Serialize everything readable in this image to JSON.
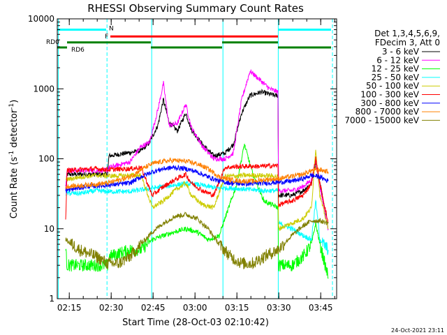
{
  "chart_data": {
    "type": "line",
    "title": "RHESSI Observing Summary Count Rates",
    "xlabel": "Start Time (28-Oct-03 02:10:42)",
    "ylabel_main": "Count Rate (s",
    "ylabel_sup1": "-1",
    "ylabel_mid": " detector",
    "ylabel_sup2": "-1",
    "ylabel_end": ")",
    "x_unit": "minutes since 02:10:42",
    "xlim": [
      0,
      100
    ],
    "ylim": [
      1,
      10000
    ],
    "y_scale": "log",
    "xticks": [
      {
        "label": "02:15",
        "value": 4.3
      },
      {
        "label": "02:30",
        "value": 19.3
      },
      {
        "label": "02:45",
        "value": 34.3
      },
      {
        "label": "03:00",
        "value": 49.3
      },
      {
        "label": "03:15",
        "value": 64.3
      },
      {
        "label": "03:30",
        "value": 79.3
      },
      {
        "label": "03:45",
        "value": 94.3
      }
    ],
    "yticks": [
      {
        "label": "1",
        "value": 1
      },
      {
        "label": "10",
        "value": 10
      },
      {
        "label": "100",
        "value": 100
      },
      {
        "label": "1000",
        "value": 1000
      },
      {
        "label": "10000",
        "value": 10000
      }
    ],
    "legend_header": [
      "Det 1,3,4,5,6,9,",
      "FDecim 3, Att 0"
    ],
    "legend_position": "right",
    "series": [
      {
        "name": "3 - 6 keV",
        "color": "#000000",
        "points": [
          [
            3,
            40
          ],
          [
            3.5,
            60
          ],
          [
            18,
            60
          ],
          [
            18.5,
            110
          ],
          [
            30,
            130
          ],
          [
            33,
            170
          ],
          [
            36,
            300
          ],
          [
            38,
            700
          ],
          [
            40,
            330
          ],
          [
            43,
            250
          ],
          [
            46,
            450
          ],
          [
            48,
            260
          ],
          [
            52,
            160
          ],
          [
            56,
            110
          ],
          [
            60,
            120
          ],
          [
            63,
            160
          ],
          [
            66,
            450
          ],
          [
            69,
            800
          ],
          [
            73,
            900
          ],
          [
            78,
            800
          ],
          [
            79,
            800
          ],
          [
            79.2,
            30
          ],
          [
            84,
            30
          ],
          [
            88,
            35
          ],
          [
            91,
            45
          ],
          [
            92.5,
            90
          ],
          [
            94,
            45
          ],
          [
            97,
            10
          ]
        ]
      },
      {
        "name": "6 - 12 keV",
        "color": "#ff00ff",
        "points": [
          [
            3,
            40
          ],
          [
            3.5,
            68
          ],
          [
            18,
            68
          ],
          [
            18.5,
            75
          ],
          [
            26,
            90
          ],
          [
            30,
            150
          ],
          [
            33,
            170
          ],
          [
            36,
            500
          ],
          [
            38,
            1200
          ],
          [
            40,
            300
          ],
          [
            43,
            320
          ],
          [
            46,
            600
          ],
          [
            48,
            280
          ],
          [
            52,
            150
          ],
          [
            56,
            100
          ],
          [
            60,
            100
          ],
          [
            63,
            120
          ],
          [
            66,
            700
          ],
          [
            69,
            1800
          ],
          [
            72,
            1400
          ],
          [
            76,
            1000
          ],
          [
            79,
            900
          ],
          [
            79.2,
            35
          ],
          [
            84,
            35
          ],
          [
            88,
            40
          ],
          [
            91,
            50
          ],
          [
            92.5,
            95
          ],
          [
            94,
            40
          ],
          [
            97,
            10
          ]
        ]
      },
      {
        "name": "12 - 25 keV",
        "color": "#00ff00",
        "points": [
          [
            3,
            5
          ],
          [
            3.5,
            3
          ],
          [
            18,
            3
          ],
          [
            18.5,
            4
          ],
          [
            26,
            5
          ],
          [
            30,
            5
          ],
          [
            34,
            7
          ],
          [
            38,
            8
          ],
          [
            42,
            9
          ],
          [
            46,
            10
          ],
          [
            50,
            9
          ],
          [
            54,
            7
          ],
          [
            58,
            8
          ],
          [
            60,
            14
          ],
          [
            64,
            40
          ],
          [
            67,
            160
          ],
          [
            70,
            60
          ],
          [
            74,
            25
          ],
          [
            79,
            20
          ],
          [
            79.2,
            3
          ],
          [
            84,
            3
          ],
          [
            88,
            4
          ],
          [
            91,
            6
          ],
          [
            92.5,
            12
          ],
          [
            94,
            6
          ],
          [
            97,
            2
          ]
        ]
      },
      {
        "name": "25 - 50 keV",
        "color": "#00ffff",
        "points": [
          [
            3,
            32
          ],
          [
            8,
            32
          ],
          [
            14,
            35
          ],
          [
            18,
            34
          ],
          [
            26,
            34
          ],
          [
            30,
            36
          ],
          [
            34,
            38
          ],
          [
            38,
            40
          ],
          [
            42,
            42
          ],
          [
            46,
            44
          ],
          [
            50,
            43
          ],
          [
            54,
            40
          ],
          [
            58,
            38
          ],
          [
            62,
            38
          ],
          [
            66,
            37
          ],
          [
            70,
            36
          ],
          [
            74,
            35
          ],
          [
            79,
            35
          ],
          [
            79.2,
            12
          ],
          [
            84,
            10
          ],
          [
            88,
            8
          ],
          [
            91,
            7
          ],
          [
            92.5,
            25
          ],
          [
            94,
            7
          ],
          [
            97,
            5
          ]
        ]
      },
      {
        "name": "50 - 100 keV",
        "color": "#cccc00",
        "points": [
          [
            3,
            50
          ],
          [
            8,
            55
          ],
          [
            14,
            58
          ],
          [
            18,
            57
          ],
          [
            22,
            57
          ],
          [
            26,
            58
          ],
          [
            30,
            58
          ],
          [
            34,
            20
          ],
          [
            38,
            25
          ],
          [
            42,
            35
          ],
          [
            46,
            45
          ],
          [
            48,
            30
          ],
          [
            52,
            22
          ],
          [
            56,
            20
          ],
          [
            60,
            56
          ],
          [
            64,
            57
          ],
          [
            68,
            58
          ],
          [
            72,
            58
          ],
          [
            76,
            57
          ],
          [
            79,
            56
          ],
          [
            79.2,
            10
          ],
          [
            84,
            12
          ],
          [
            88,
            14
          ],
          [
            91,
            20
          ],
          [
            92.5,
            140
          ],
          [
            94,
            30
          ],
          [
            97,
            10
          ]
        ]
      },
      {
        "name": "100 - 300 keV",
        "color": "#ff0000",
        "points": [
          [
            3,
            13
          ],
          [
            3.5,
            68
          ],
          [
            8,
            70
          ],
          [
            14,
            72
          ],
          [
            18,
            70
          ],
          [
            26,
            72
          ],
          [
            30,
            75
          ],
          [
            34,
            30
          ],
          [
            38,
            40
          ],
          [
            42,
            50
          ],
          [
            46,
            60
          ],
          [
            48,
            45
          ],
          [
            52,
            35
          ],
          [
            56,
            30
          ],
          [
            60,
            75
          ],
          [
            64,
            77
          ],
          [
            68,
            78
          ],
          [
            72,
            78
          ],
          [
            76,
            79
          ],
          [
            79,
            80
          ],
          [
            79.2,
            22
          ],
          [
            84,
            25
          ],
          [
            88,
            30
          ],
          [
            91,
            45
          ],
          [
            92.5,
            100
          ],
          [
            94,
            45
          ],
          [
            97,
            12
          ]
        ]
      },
      {
        "name": "300 - 800 keV",
        "color": "#0000ff",
        "points": [
          [
            3,
            35
          ],
          [
            10,
            40
          ],
          [
            18,
            42
          ],
          [
            26,
            45
          ],
          [
            30,
            55
          ],
          [
            34,
            65
          ],
          [
            38,
            72
          ],
          [
            42,
            75
          ],
          [
            46,
            72
          ],
          [
            50,
            65
          ],
          [
            54,
            55
          ],
          [
            58,
            48
          ],
          [
            62,
            45
          ],
          [
            66,
            44
          ],
          [
            70,
            44
          ],
          [
            74,
            45
          ],
          [
            79,
            46
          ],
          [
            84,
            48
          ],
          [
            88,
            52
          ],
          [
            91,
            58
          ],
          [
            94,
            55
          ],
          [
            97,
            48
          ]
        ]
      },
      {
        "name": "800 - 7000 keV",
        "color": "#ff8000",
        "points": [
          [
            3,
            40
          ],
          [
            10,
            42
          ],
          [
            18,
            45
          ],
          [
            26,
            55
          ],
          [
            30,
            70
          ],
          [
            34,
            85
          ],
          [
            38,
            92
          ],
          [
            42,
            95
          ],
          [
            46,
            92
          ],
          [
            50,
            85
          ],
          [
            54,
            72
          ],
          [
            58,
            55
          ],
          [
            62,
            50
          ],
          [
            66,
            48
          ],
          [
            70,
            48
          ],
          [
            74,
            50
          ],
          [
            79,
            52
          ],
          [
            84,
            56
          ],
          [
            88,
            60
          ],
          [
            91,
            68
          ],
          [
            94,
            70
          ],
          [
            97,
            65
          ]
        ]
      },
      {
        "name": "7000 - 15000 keV",
        "color": "#808000",
        "points": [
          [
            3,
            7
          ],
          [
            8,
            5
          ],
          [
            14,
            4
          ],
          [
            18,
            3.2
          ],
          [
            22,
            3.2
          ],
          [
            26,
            4
          ],
          [
            30,
            6
          ],
          [
            34,
            9
          ],
          [
            38,
            12
          ],
          [
            42,
            15
          ],
          [
            46,
            16
          ],
          [
            50,
            14
          ],
          [
            54,
            10
          ],
          [
            58,
            6
          ],
          [
            62,
            4
          ],
          [
            66,
            3.2
          ],
          [
            70,
            3.2
          ],
          [
            74,
            4
          ],
          [
            79,
            5
          ],
          [
            84,
            8
          ],
          [
            88,
            11
          ],
          [
            91,
            13
          ],
          [
            94,
            13
          ],
          [
            97,
            12
          ]
        ]
      }
    ],
    "flags": [
      {
        "name": "N",
        "color": "#00ffff",
        "level": 7000,
        "segments": [
          [
            0,
            17.5
          ],
          [
            79,
            98
          ]
        ]
      },
      {
        "name": "F",
        "color": "#ff0000",
        "level": 5600,
        "segments": [
          [
            19,
            79
          ]
        ]
      },
      {
        "name": "RD0",
        "color": "#008000",
        "level": 4600,
        "segments": [
          [
            3.5,
            33.5
          ],
          [
            59,
            79
          ]
        ]
      },
      {
        "name": "RD6",
        "color": "#008000",
        "level": 3900,
        "segments": [
          [
            0,
            3.5
          ],
          [
            33.5,
            59
          ],
          [
            79,
            98
          ]
        ]
      }
    ],
    "vlines": [
      {
        "value": 17.8,
        "color": "#00ffff",
        "style": "dashed"
      },
      {
        "value": 98.5,
        "color": "#00ffff",
        "style": "dashed"
      },
      {
        "value": 79.1,
        "color": "#00ffff",
        "style": "solid"
      },
      {
        "value": 0.4,
        "color": "#00ffff",
        "style": "solid"
      },
      {
        "value": 33.8,
        "color": "#00ffff",
        "style": "solid"
      },
      {
        "value": 59.3,
        "color": "#00ffff",
        "style": "solid"
      }
    ],
    "timestamp": "24-Oct-2021 23:11"
  }
}
